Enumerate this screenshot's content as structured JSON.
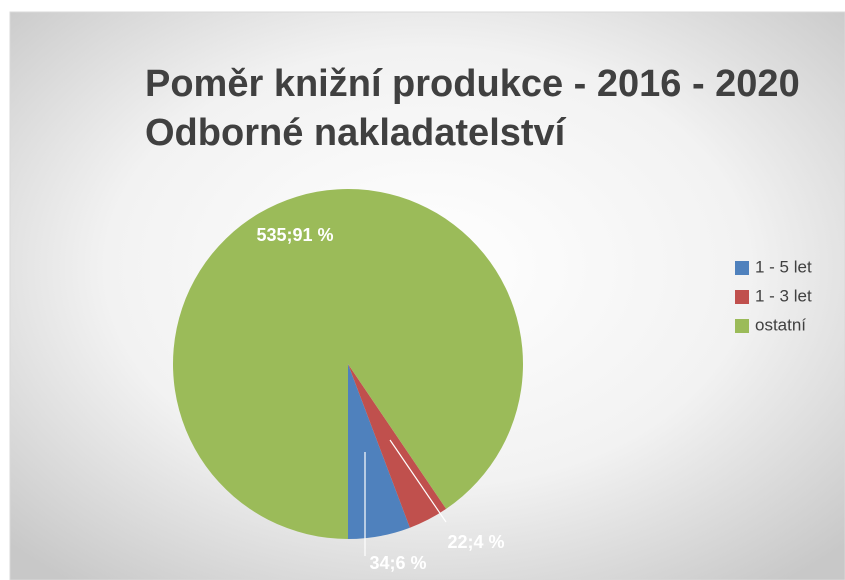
{
  "chart_data": {
    "type": "pie",
    "title": "Poměr knižní produkce - 2016 - 2020",
    "subtitle": "Odborné nakladatelství",
    "categories": [
      "1 - 5 let",
      "1 - 3 let",
      "ostatní"
    ],
    "values": [
      34,
      22,
      535
    ],
    "value_labels": [
      "34;6 %",
      "22;4 %",
      "535;91 %"
    ],
    "colors": [
      "#4f81bd",
      "#c0504d",
      "#9bbb59"
    ],
    "legend": "right"
  }
}
